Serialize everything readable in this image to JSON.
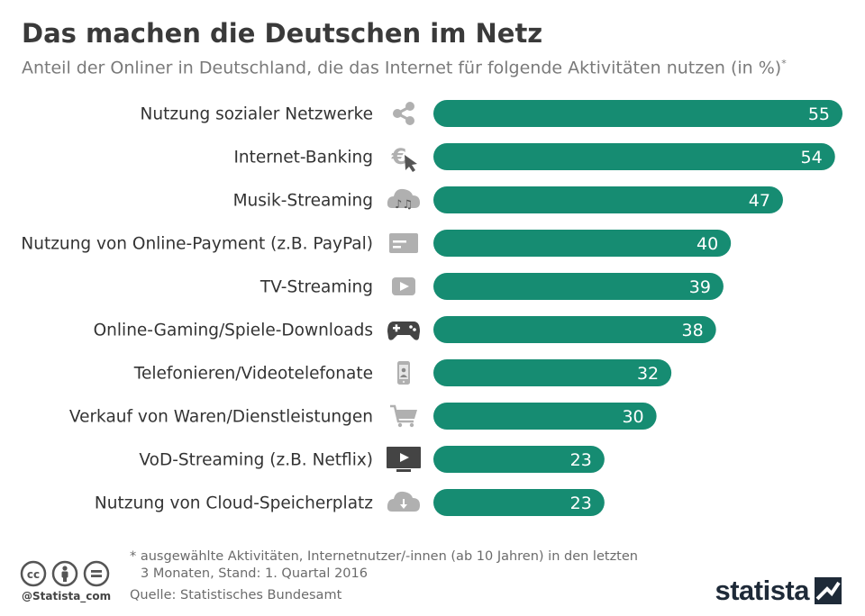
{
  "header": {
    "title": "Das machen die Deutschen im Netz",
    "subtitle": "Anteil der Onliner in Deutschland, die das Internet für folgende Aktivitäten nutzen (in %)",
    "subtitle_mark": "*"
  },
  "chart_data": {
    "type": "bar",
    "orientation": "horizontal",
    "title": "Das machen die Deutschen im Netz",
    "xlabel": "",
    "ylabel": "",
    "unit": "%",
    "xlim": [
      0,
      55
    ],
    "grid": false,
    "categories": [
      "Nutzung sozialer Netzwerke",
      "Internet-Banking",
      "Musik-Streaming",
      "Nutzung von Online-Payment (z.B. PayPal)",
      "TV-Streaming",
      "Online-Gaming/Spiele-Downloads",
      "Telefonieren/Videotelefonate",
      "Verkauf von Waren/Dienstleistungen",
      "VoD-Streaming (z.B. Netflix)",
      "Nutzung von Cloud-Speicherplatz"
    ],
    "values": [
      55,
      54,
      47,
      40,
      39,
      38,
      32,
      30,
      23,
      23
    ],
    "icons": [
      "share-icon",
      "euro-cursor-icon",
      "music-cloud-icon",
      "credit-card-icon",
      "play-button-icon",
      "gamepad-icon",
      "smartphone-icon",
      "shopping-cart-icon",
      "tv-play-icon",
      "cloud-download-icon"
    ],
    "bar_color": "#168c72",
    "icon_color": "#b0b0b0"
  },
  "footer": {
    "note_line1": "* ausgewählte Aktivitäten, Internetnutzer/-innen (ab 10 Jahren) in den letzten",
    "note_line2": "3 Monaten, Stand: 1. Quartal 2016",
    "source": "Quelle: Statistisches Bundesamt",
    "credit": "@Statista_com",
    "logo": "statista",
    "license_icons": [
      "cc-icon",
      "by-icon",
      "nd-icon"
    ]
  }
}
